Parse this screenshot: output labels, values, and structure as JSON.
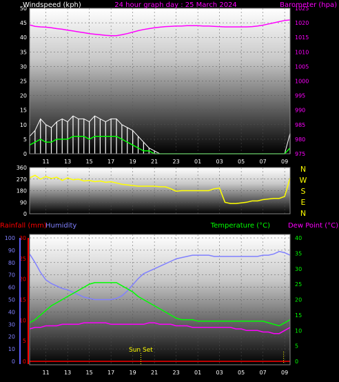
{
  "title": "24 hour graph day : 25 March 2024",
  "colors": {
    "wind_avg": "#00ff00",
    "wind_gust": "#ffffff",
    "barometer": "#ff00ff",
    "direction": "#ffff00",
    "temperature": "#00ff00",
    "dew_point": "#ff00ff",
    "humidity": "#8080ff",
    "rainfall": "#ff0000",
    "sunset": "#ffff00"
  },
  "time_ticks": [
    "11",
    "13",
    "15",
    "17",
    "19",
    "21",
    "23",
    "01",
    "03",
    "05",
    "07",
    "09"
  ],
  "chart_data": [
    {
      "type": "line",
      "panel": "wind_barometer",
      "title": "24 hour graph day : 25 March 2024",
      "ylabel_left": "Windspeed (kph)",
      "ylabel_right": "Barometer (hpa)",
      "ylim_left": [
        0,
        50
      ],
      "ylim_right": [
        975,
        1025
      ],
      "yticks_left": [
        "0",
        "5",
        "10",
        "15",
        "20",
        "25",
        "30",
        "35",
        "40",
        "45",
        "50"
      ],
      "yticks_right": [
        "975",
        "980",
        "985",
        "990",
        "995",
        "1000",
        "1005",
        "1010",
        "1015",
        "1020",
        "1025"
      ],
      "x": [
        9.5,
        10,
        10.5,
        11,
        11.5,
        12,
        12.5,
        13,
        13.5,
        14,
        14.5,
        15,
        15.5,
        16,
        16.5,
        17,
        17.5,
        18,
        18.5,
        19,
        19.5,
        20,
        20.5,
        21,
        21.5,
        22,
        22.5,
        23,
        23.5,
        24,
        24.5,
        25,
        25.5,
        26,
        26.5,
        27,
        27.5,
        28,
        28.5,
        29,
        29.5,
        30,
        30.5,
        31,
        31.5,
        32,
        32.5,
        33,
        33.5
      ],
      "series": [
        {
          "name": "Barometer",
          "axis": "right",
          "values": [
            1019.3,
            1018.8,
            1018.6,
            1018.5,
            1018.3,
            1018.0,
            1017.8,
            1017.5,
            1017.2,
            1016.9,
            1016.6,
            1016.3,
            1016.1,
            1015.9,
            1015.7,
            1015.6,
            1015.6,
            1015.9,
            1016.3,
            1016.8,
            1017.3,
            1017.7,
            1018.0,
            1018.3,
            1018.5,
            1018.7,
            1018.8,
            1018.9,
            1018.9,
            1019.0,
            1019.0,
            1019.0,
            1018.9,
            1018.9,
            1018.8,
            1018.7,
            1018.6,
            1018.6,
            1018.6,
            1018.6,
            1018.6,
            1018.7,
            1018.9,
            1019.2,
            1019.6,
            1020.0,
            1020.4,
            1020.8,
            1021.0
          ]
        },
        {
          "name": "Wind gust",
          "axis": "left",
          "values": [
            6,
            8,
            12,
            10,
            9,
            11,
            12,
            11,
            13,
            12,
            12,
            11,
            13,
            12,
            11,
            12,
            12,
            10,
            9,
            8,
            6,
            4,
            2,
            1,
            0,
            0,
            0,
            0,
            0,
            0,
            0,
            0,
            0,
            0,
            0,
            0,
            0,
            0,
            0,
            0,
            0,
            0,
            0,
            0,
            0,
            0,
            0,
            0,
            7
          ]
        },
        {
          "name": "Wind average",
          "axis": "left",
          "values": [
            3,
            4,
            5,
            4,
            4,
            5,
            5,
            5,
            6,
            6,
            6,
            5,
            6,
            6,
            6,
            6,
            6,
            5,
            4,
            3,
            2,
            1,
            1,
            0,
            0,
            0,
            0,
            0,
            0,
            0,
            0,
            0,
            0,
            0,
            0,
            0,
            0,
            0,
            0,
            0,
            0,
            0,
            0,
            0,
            0,
            0,
            0,
            0,
            2
          ]
        }
      ]
    },
    {
      "type": "line",
      "panel": "wind_direction",
      "ylabel_right": "N W S E N",
      "ylim": [
        0,
        360
      ],
      "yticks": [
        "0",
        "90",
        "180",
        "270",
        "360"
      ],
      "compass": [
        "N",
        "W",
        "S",
        "E",
        "N"
      ],
      "x": [
        9.5,
        10,
        10.5,
        11,
        11.5,
        12,
        12.5,
        13,
        13.5,
        14,
        14.5,
        15,
        15.5,
        16,
        16.5,
        17,
        17.5,
        18,
        18.5,
        19,
        19.5,
        20,
        20.5,
        21,
        21.5,
        22,
        22.5,
        23,
        23.5,
        24,
        24.5,
        25,
        25.5,
        26,
        26.5,
        27,
        27.5,
        28,
        28.5,
        29,
        29.5,
        30,
        30.5,
        31,
        31.5,
        32,
        32.5,
        33,
        33.5
      ],
      "series": [
        {
          "name": "Wind direction",
          "values": [
            280,
            300,
            270,
            290,
            275,
            285,
            260,
            280,
            265,
            270,
            255,
            260,
            250,
            255,
            245,
            250,
            240,
            230,
            225,
            220,
            215,
            215,
            215,
            215,
            210,
            210,
            195,
            175,
            180,
            180,
            180,
            180,
            180,
            180,
            195,
            200,
            90,
            80,
            80,
            85,
            90,
            100,
            100,
            110,
            115,
            120,
            120,
            135,
            280
          ]
        }
      ]
    },
    {
      "type": "line",
      "panel": "temp_humidity_rain",
      "ylabel_left_1": "Rainfall (mm)",
      "ylabel_left_2": "Humidity",
      "ylabel_right_1": "Temperature (°C)",
      "ylabel_right_2": "Dew Point (°C)",
      "ylim_humidity": [
        0,
        100
      ],
      "ylim_rain": [
        0,
        30
      ],
      "ylim_temp": [
        0,
        40
      ],
      "yticks_humidity": [
        "0",
        "10",
        "20",
        "30",
        "40",
        "50",
        "60",
        "70",
        "80",
        "90",
        "100"
      ],
      "yticks_rain": [
        "0",
        "5",
        "10",
        "15",
        "20",
        "25",
        "30"
      ],
      "yticks_temp": [
        "0",
        "5",
        "10",
        "15",
        "20",
        "25",
        "30",
        "35",
        "40"
      ],
      "x": [
        9.5,
        10,
        10.5,
        11,
        11.5,
        12,
        12.5,
        13,
        13.5,
        14,
        14.5,
        15,
        15.5,
        16,
        16.5,
        17,
        17.5,
        18,
        18.5,
        19,
        19.5,
        20,
        20.5,
        21,
        21.5,
        22,
        22.5,
        23,
        23.5,
        24,
        24.5,
        25,
        25.5,
        26,
        26.5,
        27,
        27.5,
        28,
        28.5,
        29,
        29.5,
        30,
        30.5,
        31,
        31.5,
        32,
        32.5,
        33,
        33.5
      ],
      "series": [
        {
          "name": "Humidity",
          "axis": "humidity",
          "values": [
            87,
            80,
            72,
            66,
            63,
            61,
            59,
            58,
            56,
            54,
            52,
            51,
            50,
            50,
            50,
            50,
            51,
            53,
            57,
            62,
            67,
            71,
            73,
            75,
            77,
            79,
            81,
            83,
            84,
            85,
            86,
            86,
            86,
            86,
            85,
            85,
            85,
            85,
            85,
            85,
            85,
            85,
            85,
            86,
            86,
            87,
            89,
            88,
            86
          ]
        },
        {
          "name": "Temperature",
          "axis": "temp",
          "values": [
            12.5,
            13.5,
            15,
            16.5,
            18,
            19,
            20,
            21,
            22,
            23,
            24,
            25,
            25.5,
            25.5,
            25.5,
            25.5,
            25.5,
            24.5,
            23.5,
            22.5,
            21,
            20,
            19,
            18,
            17,
            16,
            15,
            14,
            13.5,
            13.5,
            13.5,
            13,
            13,
            13,
            13,
            13,
            13,
            13,
            13,
            13,
            13,
            13,
            13,
            13,
            12.5,
            12,
            11.5,
            12.5,
            13.5
          ]
        },
        {
          "name": "Dew Point",
          "axis": "temp",
          "values": [
            10.5,
            11,
            11,
            11.5,
            11.5,
            11.5,
            12,
            12,
            12,
            12,
            12.5,
            12.5,
            12.5,
            12.5,
            12.5,
            12,
            12,
            12,
            12,
            12,
            12,
            12,
            12.5,
            12.5,
            12,
            12,
            12,
            11.5,
            11.5,
            11.5,
            11,
            11,
            11,
            11,
            11,
            11,
            11,
            11,
            10.5,
            10.5,
            10,
            10,
            10,
            9.5,
            9.5,
            9,
            9,
            10,
            11
          ]
        },
        {
          "name": "Rainfall",
          "axis": "rain",
          "values": [
            0,
            0,
            0,
            0,
            0,
            0,
            0,
            0,
            0,
            0,
            0,
            0,
            0,
            0,
            0,
            0,
            0,
            0,
            0,
            0,
            0,
            0,
            0,
            0,
            0,
            0,
            0,
            0,
            0,
            0,
            0,
            0,
            0,
            0,
            0,
            0,
            0,
            0,
            0,
            0,
            0,
            0,
            0,
            0,
            0,
            0,
            0,
            0,
            0
          ]
        }
      ],
      "annotations": [
        {
          "text": "Sun Set",
          "x": 19.75
        }
      ],
      "sunrise_marker_x": 32.9
    }
  ]
}
